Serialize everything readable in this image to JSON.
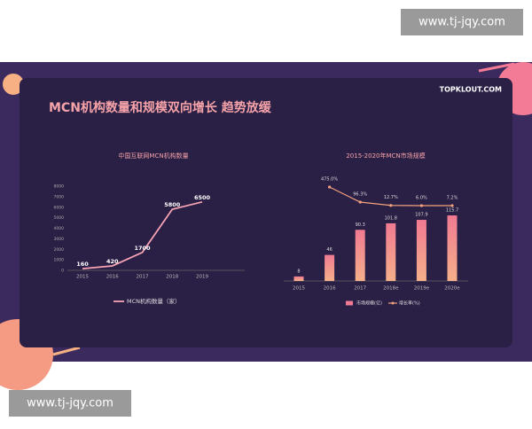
{
  "watermark_top": "www.tj-jqy.com",
  "watermark_bottom": "www.tj-jqy.com",
  "slide_title": "MCN机构数量和规模双向增长 趋势放缓",
  "logo": "TOPKLOUT.COM",
  "chart_data": [
    {
      "type": "line",
      "title": "中国互联网MCN机构数量",
      "categories": [
        "2015",
        "2016",
        "2017",
        "2018",
        "2019"
      ],
      "series": [
        {
          "name": "MCN机构数量（家）",
          "color": "#f6a3b4",
          "values": [
            160,
            420,
            1700,
            5800,
            6500
          ]
        }
      ],
      "ylim": [
        0,
        8000
      ],
      "yticks": [
        0,
        1000,
        2000,
        3000,
        4000,
        5000,
        6000,
        7000,
        8000
      ]
    },
    {
      "type": "bar",
      "title": "2015-2020年MCN市场规模",
      "categories": [
        "2015",
        "2016",
        "2017",
        "2018e",
        "2019e",
        "2020e"
      ],
      "series": [
        {
          "name": "市场规模(亿)",
          "type": "bar",
          "color": "#f07a92",
          "values": [
            8,
            46,
            90.3,
            101.8,
            107.9,
            115.7
          ]
        },
        {
          "name": "增长率(%)",
          "type": "line",
          "axis": "y2",
          "color": "#f2a27e",
          "values": [
            null,
            475,
            96.3,
            12.7,
            6,
            7.2
          ],
          "value_labels": [
            null,
            "475.0%",
            "96.3%",
            "12.7%",
            "6.0%",
            "7.2%"
          ]
        }
      ],
      "ylim": [
        0,
        120
      ],
      "y2lim": [
        0,
        500
      ]
    }
  ]
}
